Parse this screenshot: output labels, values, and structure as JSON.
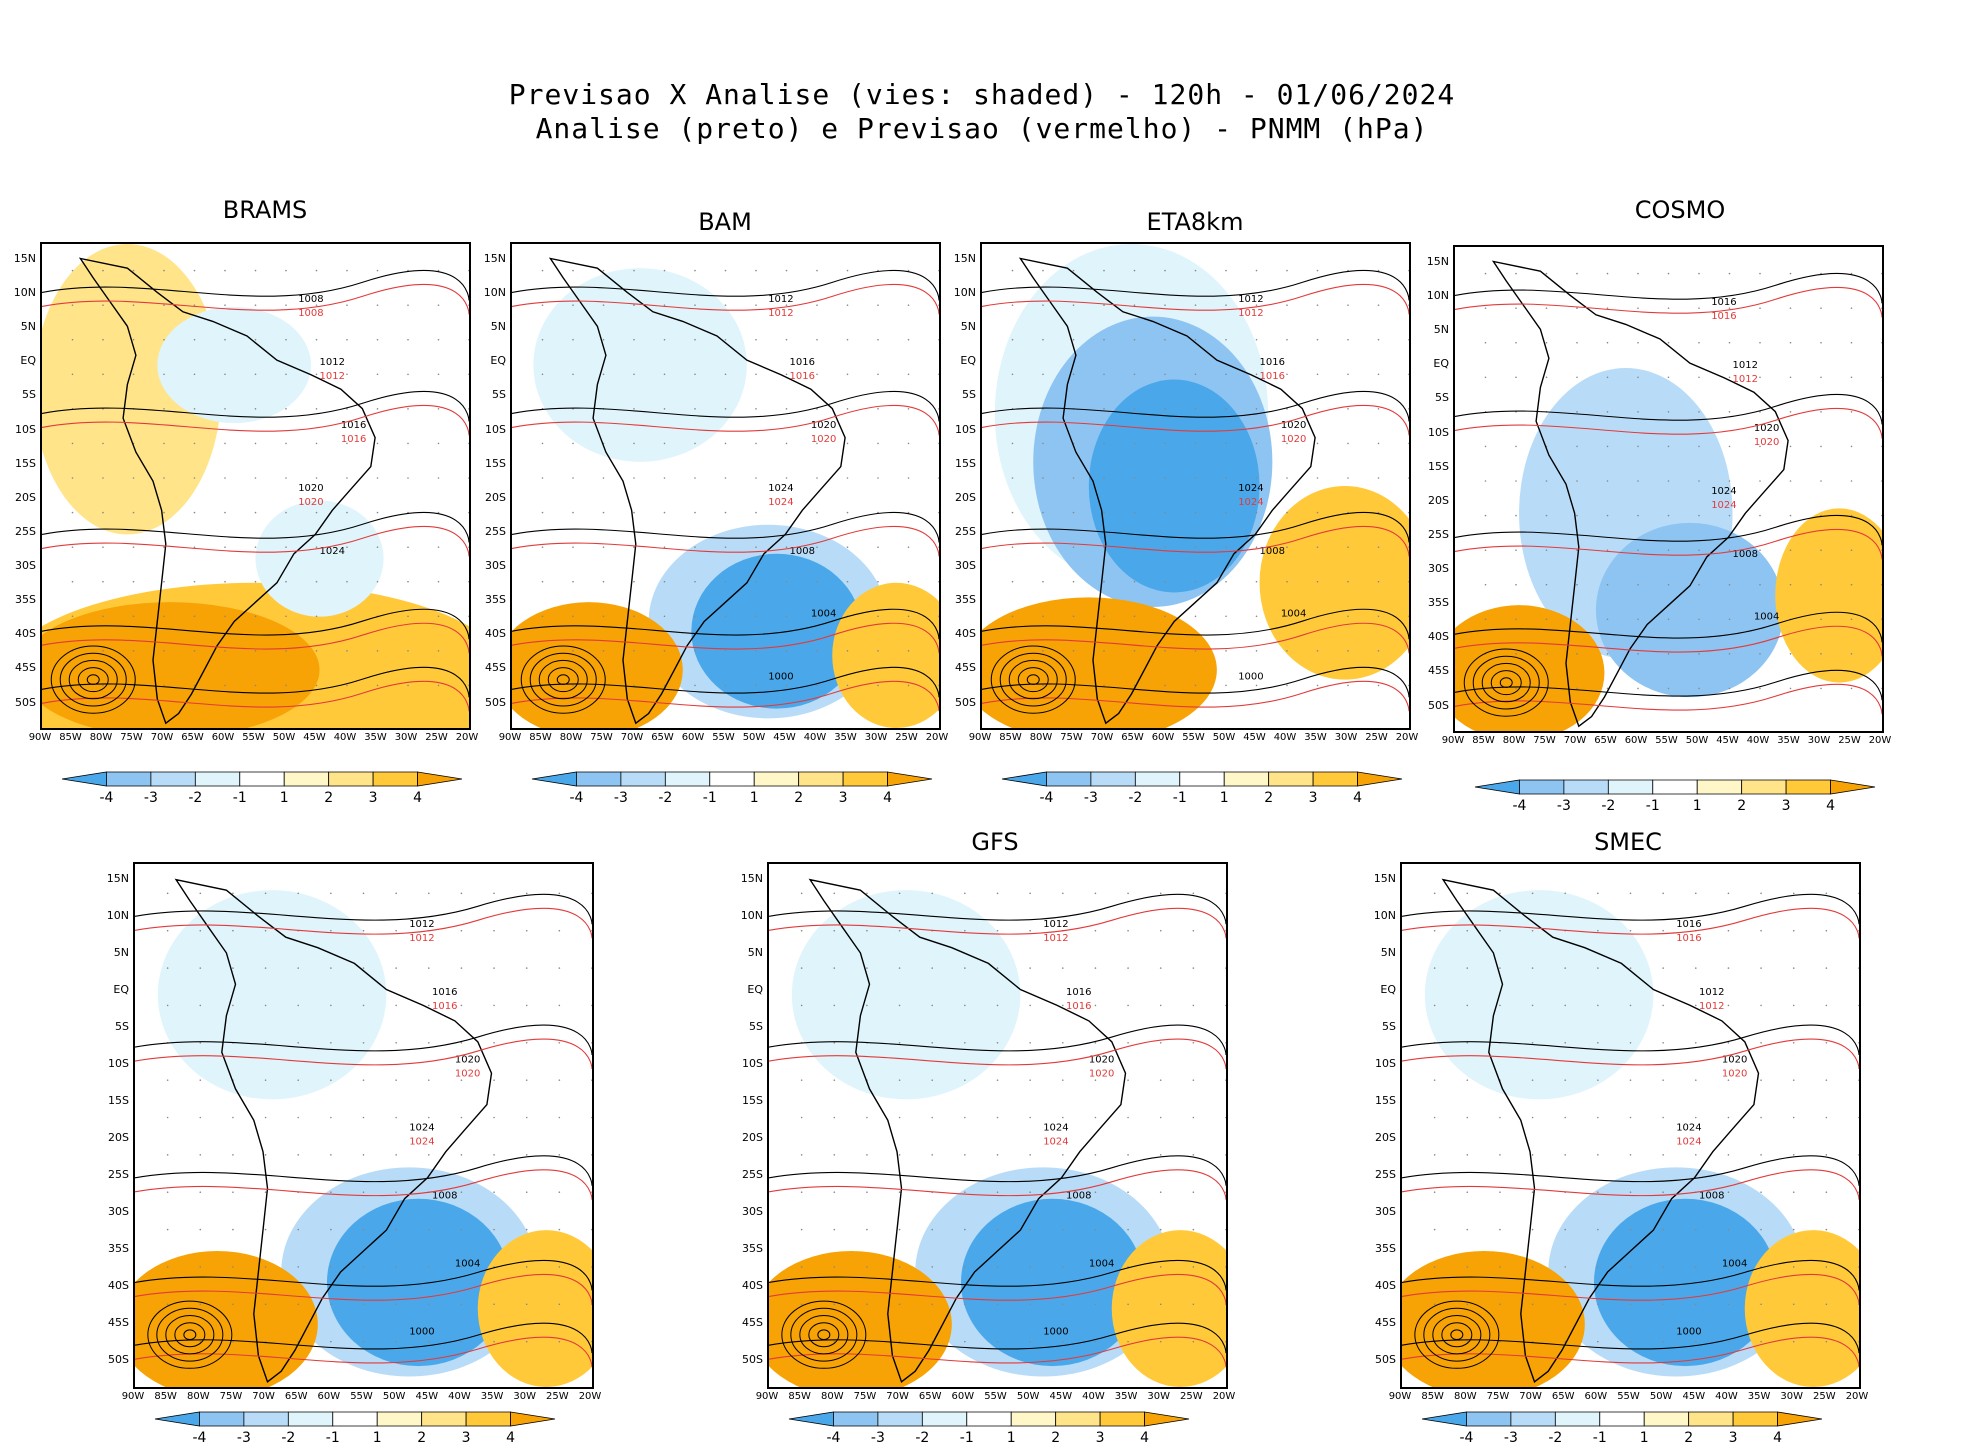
{
  "title": {
    "line1": "Previsao X Analise (vies: shaded) - 120h - 01/06/2024",
    "line2": "Analise (preto) e Previsao (vermelho) - PNMM (hPa)"
  },
  "colors": {
    "neg4": "#4aa8ea",
    "neg3": "#8ec4f2",
    "neg2": "#b8dcf8",
    "neg1": "#dff4fb",
    "pos1": "#fff7c8",
    "pos2": "#ffe48a",
    "pos3": "#ffc93a",
    "pos4": "#f7a205",
    "analysis": "#000000",
    "forecast": "#e23a3a",
    "land_outline": "#000000"
  },
  "colorbar_labels": [
    "-4",
    "-3",
    "-2",
    "-1",
    "1",
    "2",
    "3",
    "4"
  ],
  "lat_labels": [
    "15N",
    "10N",
    "5N",
    "EQ",
    "5S",
    "10S",
    "15S",
    "20S",
    "25S",
    "30S",
    "35S",
    "40S",
    "45S",
    "50S"
  ],
  "lon_labels": [
    "90W",
    "85W",
    "80W",
    "75W",
    "70W",
    "65W",
    "60W",
    "55W",
    "50W",
    "45W",
    "40W",
    "35W",
    "30W",
    "25W",
    "20W"
  ],
  "panels": [
    {
      "id": "brams",
      "title": "BRAMS",
      "isobars": [
        "1008",
        "1012",
        "1016",
        "1020",
        "1024"
      ],
      "bias": "positive-south"
    },
    {
      "id": "bam",
      "title": "BAM",
      "isobars": [
        "1012",
        "1016",
        "1020",
        "1024",
        "1008",
        "1004",
        "1000"
      ],
      "bias": "negative-southeast"
    },
    {
      "id": "eta8km",
      "title": "ETA8km",
      "isobars": [
        "1012",
        "1016",
        "1020",
        "1024",
        "1008",
        "1004",
        "1000"
      ],
      "bias": "negative-continent"
    },
    {
      "id": "cosmo",
      "title": "COSMO",
      "isobars": [
        "1016",
        "1012",
        "1020",
        "1024",
        "1008",
        "1004"
      ],
      "bias": "mixed"
    },
    {
      "id": "unnamed",
      "title": "",
      "isobars": [
        "1012",
        "1016",
        "1020",
        "1024",
        "1008",
        "1004",
        "1000"
      ],
      "bias": "negative-southeast"
    },
    {
      "id": "gfs",
      "title": "GFS",
      "isobars": [
        "1012",
        "1016",
        "1020",
        "1024",
        "1008",
        "1004",
        "1000"
      ],
      "bias": "negative-southeast"
    },
    {
      "id": "smec",
      "title": "SMEC",
      "isobars": [
        "1016",
        "1012",
        "1020",
        "1024",
        "1008",
        "1004",
        "1000"
      ],
      "bias": "negative-southeast"
    }
  ]
}
